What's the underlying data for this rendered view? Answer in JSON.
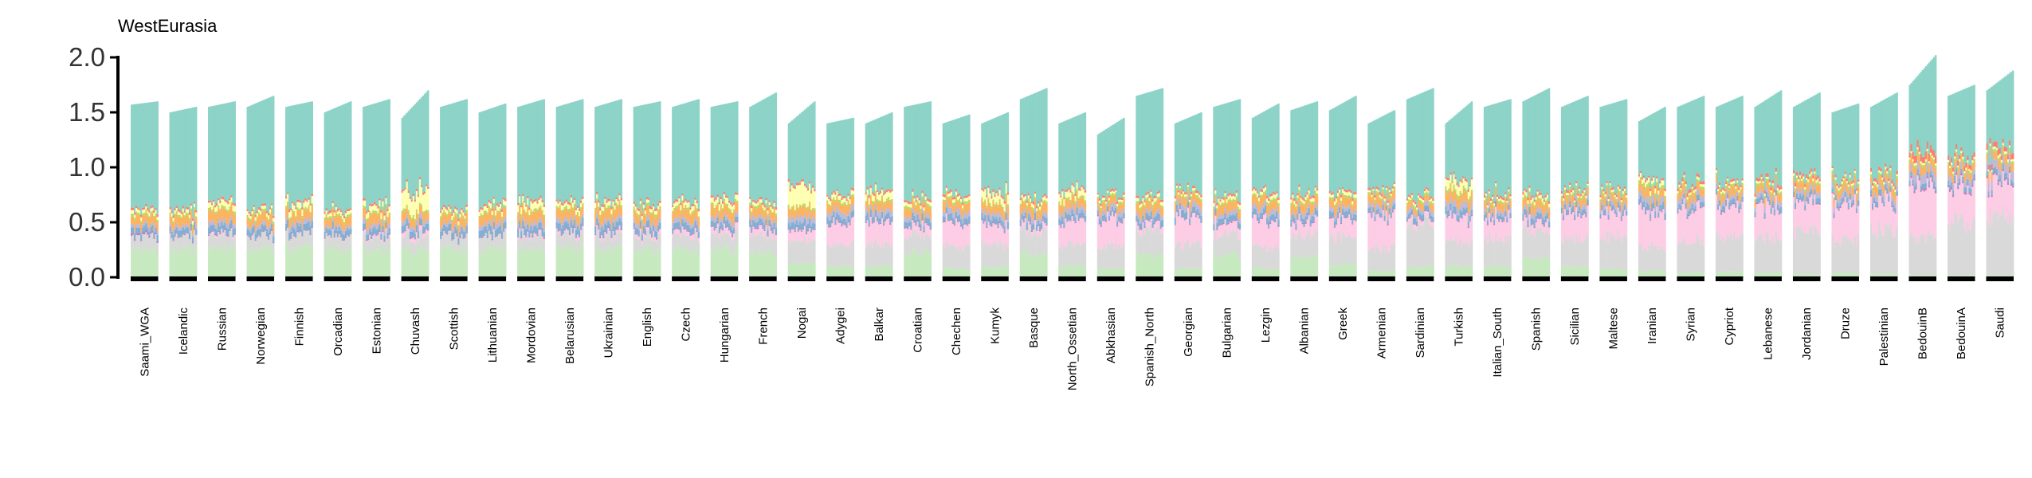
{
  "chart_data": {
    "type": "bar",
    "stacked": true,
    "title": "WestEurasia",
    "xlabel": "",
    "ylabel": "",
    "ylim": [
      0,
      2.0
    ],
    "yticks": [
      0.0,
      0.5,
      1.0,
      1.5,
      2.0
    ],
    "ytick_labels": [
      "0.0",
      "0.5",
      "1.0",
      "1.5",
      "2.0"
    ],
    "grid": false,
    "legend": "none",
    "colors": [
      "#c7e9c0",
      "#d9d9d9",
      "#fccde5",
      "#bc80bd",
      "#80b1d3",
      "#bebada",
      "#fdb462",
      "#b3de69",
      "#ffffb3",
      "#fb8072",
      "#8dd3c7"
    ],
    "component_order": [
      "green",
      "grey",
      "pink",
      "purple_dots",
      "blue",
      "lavender",
      "orange",
      "lime",
      "yellow",
      "red",
      "teal"
    ],
    "groups": [
      {
        "label": "Saami_WGA",
        "total": [
          1.57,
          1.6
        ],
        "comp": [
          0.25,
          0.12,
          0.0,
          0.02,
          0.05,
          0.03,
          0.08,
          0.02,
          0.03,
          0.02
        ]
      },
      {
        "label": "Icelandic",
        "total": [
          1.5,
          1.55
        ],
        "comp": [
          0.25,
          0.12,
          0.0,
          0.01,
          0.05,
          0.03,
          0.08,
          0.02,
          0.03,
          0.02
        ]
      },
      {
        "label": "Russian",
        "total": [
          1.55,
          1.6
        ],
        "comp": [
          0.26,
          0.12,
          0.02,
          0.01,
          0.06,
          0.04,
          0.1,
          0.02,
          0.05,
          0.02
        ]
      },
      {
        "label": "Norwegian",
        "total": [
          1.55,
          1.65
        ],
        "comp": [
          0.25,
          0.12,
          0.0,
          0.01,
          0.05,
          0.03,
          0.08,
          0.02,
          0.03,
          0.02
        ]
      },
      {
        "label": "Finnish",
        "total": [
          1.55,
          1.6
        ],
        "comp": [
          0.27,
          0.12,
          0.0,
          0.01,
          0.06,
          0.04,
          0.09,
          0.02,
          0.06,
          0.02
        ]
      },
      {
        "label": "Orcadian",
        "total": [
          1.5,
          1.6
        ],
        "comp": [
          0.25,
          0.12,
          0.0,
          0.01,
          0.05,
          0.03,
          0.08,
          0.02,
          0.03,
          0.02
        ]
      },
      {
        "label": "Estonian",
        "total": [
          1.55,
          1.62
        ],
        "comp": [
          0.25,
          0.12,
          0.02,
          0.01,
          0.05,
          0.04,
          0.09,
          0.02,
          0.05,
          0.02
        ]
      },
      {
        "label": "Chuvash",
        "total": [
          1.45,
          1.7
        ],
        "comp": [
          0.25,
          0.12,
          0.04,
          0.01,
          0.05,
          0.04,
          0.08,
          0.02,
          0.18,
          0.02
        ]
      },
      {
        "label": "Scottish",
        "total": [
          1.55,
          1.62
        ],
        "comp": [
          0.25,
          0.12,
          0.0,
          0.01,
          0.05,
          0.03,
          0.08,
          0.02,
          0.03,
          0.02
        ]
      },
      {
        "label": "Lithuanian",
        "total": [
          1.5,
          1.58
        ],
        "comp": [
          0.26,
          0.12,
          0.0,
          0.01,
          0.06,
          0.04,
          0.09,
          0.02,
          0.04,
          0.02
        ]
      },
      {
        "label": "Mordovian",
        "total": [
          1.55,
          1.62
        ],
        "comp": [
          0.26,
          0.12,
          0.02,
          0.01,
          0.06,
          0.04,
          0.1,
          0.02,
          0.06,
          0.02
        ]
      },
      {
        "label": "Belarusian",
        "total": [
          1.55,
          1.62
        ],
        "comp": [
          0.26,
          0.12,
          0.02,
          0.01,
          0.06,
          0.04,
          0.09,
          0.02,
          0.04,
          0.02
        ]
      },
      {
        "label": "Ukrainian",
        "total": [
          1.55,
          1.62
        ],
        "comp": [
          0.26,
          0.12,
          0.03,
          0.01,
          0.06,
          0.04,
          0.1,
          0.02,
          0.04,
          0.02
        ]
      },
      {
        "label": "English",
        "total": [
          1.55,
          1.6
        ],
        "comp": [
          0.25,
          0.12,
          0.03,
          0.01,
          0.05,
          0.04,
          0.09,
          0.02,
          0.03,
          0.02
        ]
      },
      {
        "label": "Czech",
        "total": [
          1.55,
          1.62
        ],
        "comp": [
          0.25,
          0.12,
          0.04,
          0.01,
          0.05,
          0.04,
          0.09,
          0.02,
          0.04,
          0.02
        ]
      },
      {
        "label": "Hungarian",
        "total": [
          1.55,
          1.6
        ],
        "comp": [
          0.25,
          0.13,
          0.05,
          0.01,
          0.05,
          0.04,
          0.09,
          0.02,
          0.05,
          0.02
        ]
      },
      {
        "label": "French",
        "total": [
          1.55,
          1.68
        ],
        "comp": [
          0.22,
          0.15,
          0.06,
          0.01,
          0.05,
          0.04,
          0.08,
          0.02,
          0.03,
          0.02
        ]
      },
      {
        "label": "Nogai",
        "total": [
          1.4,
          1.6
        ],
        "comp": [
          0.12,
          0.2,
          0.1,
          0.01,
          0.06,
          0.05,
          0.08,
          0.02,
          0.18,
          0.02
        ]
      },
      {
        "label": "Adygei",
        "total": [
          1.4,
          1.45
        ],
        "comp": [
          0.1,
          0.2,
          0.2,
          0.01,
          0.05,
          0.05,
          0.08,
          0.02,
          0.04,
          0.02
        ]
      },
      {
        "label": "Balkar",
        "total": [
          1.4,
          1.5
        ],
        "comp": [
          0.1,
          0.2,
          0.2,
          0.01,
          0.05,
          0.05,
          0.08,
          0.02,
          0.06,
          0.02
        ]
      },
      {
        "label": "Croatian",
        "total": [
          1.55,
          1.6
        ],
        "comp": [
          0.22,
          0.16,
          0.08,
          0.01,
          0.05,
          0.04,
          0.08,
          0.02,
          0.03,
          0.02
        ]
      },
      {
        "label": "Chechen",
        "total": [
          1.4,
          1.48
        ],
        "comp": [
          0.08,
          0.2,
          0.22,
          0.01,
          0.05,
          0.05,
          0.08,
          0.02,
          0.03,
          0.02
        ]
      },
      {
        "label": "Kumyk",
        "total": [
          1.4,
          1.5
        ],
        "comp": [
          0.1,
          0.2,
          0.18,
          0.01,
          0.05,
          0.05,
          0.08,
          0.02,
          0.08,
          0.02
        ]
      },
      {
        "label": "Basque",
        "total": [
          1.62,
          1.72
        ],
        "comp": [
          0.22,
          0.2,
          0.05,
          0.01,
          0.05,
          0.04,
          0.08,
          0.02,
          0.03,
          0.02
        ]
      },
      {
        "label": "North_Ossetian",
        "total": [
          1.4,
          1.5
        ],
        "comp": [
          0.1,
          0.2,
          0.22,
          0.01,
          0.05,
          0.05,
          0.08,
          0.02,
          0.06,
          0.02
        ]
      },
      {
        "label": "Abkhasian",
        "total": [
          1.3,
          1.45
        ],
        "comp": [
          0.08,
          0.2,
          0.25,
          0.01,
          0.04,
          0.05,
          0.07,
          0.02,
          0.02,
          0.02
        ]
      },
      {
        "label": "Spanish_North",
        "total": [
          1.65,
          1.72
        ],
        "comp": [
          0.2,
          0.22,
          0.06,
          0.01,
          0.05,
          0.04,
          0.08,
          0.02,
          0.03,
          0.02
        ]
      },
      {
        "label": "Georgian",
        "total": [
          1.4,
          1.5
        ],
        "comp": [
          0.08,
          0.22,
          0.26,
          0.01,
          0.05,
          0.05,
          0.07,
          0.02,
          0.02,
          0.02
        ]
      },
      {
        "label": "Bulgarian",
        "total": [
          1.55,
          1.62
        ],
        "comp": [
          0.2,
          0.18,
          0.1,
          0.01,
          0.05,
          0.04,
          0.08,
          0.02,
          0.03,
          0.02
        ]
      },
      {
        "label": "Lezgin",
        "total": [
          1.45,
          1.58
        ],
        "comp": [
          0.08,
          0.2,
          0.25,
          0.01,
          0.05,
          0.05,
          0.08,
          0.02,
          0.03,
          0.02
        ]
      },
      {
        "label": "Albanian",
        "total": [
          1.52,
          1.6
        ],
        "comp": [
          0.18,
          0.2,
          0.12,
          0.01,
          0.05,
          0.04,
          0.08,
          0.02,
          0.03,
          0.02
        ]
      },
      {
        "label": "Greek",
        "total": [
          1.52,
          1.65
        ],
        "comp": [
          0.12,
          0.25,
          0.15,
          0.01,
          0.05,
          0.04,
          0.08,
          0.02,
          0.03,
          0.02
        ]
      },
      {
        "label": "Armenian",
        "total": [
          1.4,
          1.52
        ],
        "comp": [
          0.06,
          0.2,
          0.3,
          0.01,
          0.04,
          0.05,
          0.08,
          0.02,
          0.02,
          0.02
        ]
      },
      {
        "label": "Sardinian",
        "total": [
          1.62,
          1.72
        ],
        "comp": [
          0.1,
          0.38,
          0.05,
          0.01,
          0.04,
          0.04,
          0.06,
          0.02,
          0.02,
          0.02
        ]
      },
      {
        "label": "Turkish",
        "total": [
          1.4,
          1.6
        ],
        "comp": [
          0.1,
          0.22,
          0.22,
          0.01,
          0.05,
          0.06,
          0.09,
          0.03,
          0.08,
          0.02
        ]
      },
      {
        "label": "Italian_South",
        "total": [
          1.55,
          1.62
        ],
        "comp": [
          0.1,
          0.25,
          0.2,
          0.01,
          0.04,
          0.04,
          0.07,
          0.02,
          0.02,
          0.02
        ]
      },
      {
        "label": "Spanish",
        "total": [
          1.6,
          1.72
        ],
        "comp": [
          0.18,
          0.25,
          0.08,
          0.01,
          0.05,
          0.04,
          0.08,
          0.02,
          0.03,
          0.02
        ]
      },
      {
        "label": "Sicilian",
        "total": [
          1.55,
          1.65
        ],
        "comp": [
          0.1,
          0.25,
          0.22,
          0.01,
          0.04,
          0.04,
          0.07,
          0.02,
          0.02,
          0.02
        ]
      },
      {
        "label": "Maltese",
        "total": [
          1.55,
          1.62
        ],
        "comp": [
          0.08,
          0.3,
          0.22,
          0.01,
          0.04,
          0.04,
          0.07,
          0.02,
          0.02,
          0.02
        ]
      },
      {
        "label": "Iranian",
        "total": [
          1.42,
          1.55
        ],
        "comp": [
          0.06,
          0.22,
          0.32,
          0.01,
          0.05,
          0.06,
          0.08,
          0.03,
          0.04,
          0.02
        ]
      },
      {
        "label": "Syrian",
        "total": [
          1.55,
          1.65
        ],
        "comp": [
          0.04,
          0.3,
          0.3,
          0.01,
          0.04,
          0.05,
          0.07,
          0.02,
          0.02,
          0.03
        ]
      },
      {
        "label": "Cypriot",
        "total": [
          1.55,
          1.65
        ],
        "comp": [
          0.05,
          0.32,
          0.28,
          0.01,
          0.04,
          0.04,
          0.07,
          0.02,
          0.02,
          0.02
        ]
      },
      {
        "label": "Lebanese",
        "total": [
          1.55,
          1.7
        ],
        "comp": [
          0.04,
          0.32,
          0.28,
          0.01,
          0.04,
          0.05,
          0.07,
          0.02,
          0.02,
          0.03
        ]
      },
      {
        "label": "Jordanian",
        "total": [
          1.55,
          1.68
        ],
        "comp": [
          0.03,
          0.38,
          0.26,
          0.01,
          0.04,
          0.05,
          0.07,
          0.02,
          0.02,
          0.03
        ]
      },
      {
        "label": "Druze",
        "total": [
          1.5,
          1.58
        ],
        "comp": [
          0.04,
          0.3,
          0.32,
          0.01,
          0.04,
          0.05,
          0.07,
          0.02,
          0.02,
          0.02
        ]
      },
      {
        "label": "Palestinian",
        "total": [
          1.55,
          1.68
        ],
        "comp": [
          0.03,
          0.4,
          0.26,
          0.01,
          0.04,
          0.05,
          0.07,
          0.02,
          0.02,
          0.03
        ]
      },
      {
        "label": "BedouinB",
        "total": [
          1.75,
          2.02
        ],
        "comp": [
          0.02,
          0.35,
          0.48,
          0.02,
          0.04,
          0.08,
          0.08,
          0.02,
          0.02,
          0.06
        ]
      },
      {
        "label": "BedouinA",
        "total": [
          1.65,
          1.75
        ],
        "comp": [
          0.02,
          0.48,
          0.3,
          0.02,
          0.04,
          0.06,
          0.07,
          0.02,
          0.02,
          0.04
        ]
      },
      {
        "label": "Saudi",
        "total": [
          1.7,
          1.88
        ],
        "comp": [
          0.02,
          0.52,
          0.32,
          0.02,
          0.04,
          0.08,
          0.07,
          0.02,
          0.02,
          0.05
        ]
      }
    ]
  }
}
